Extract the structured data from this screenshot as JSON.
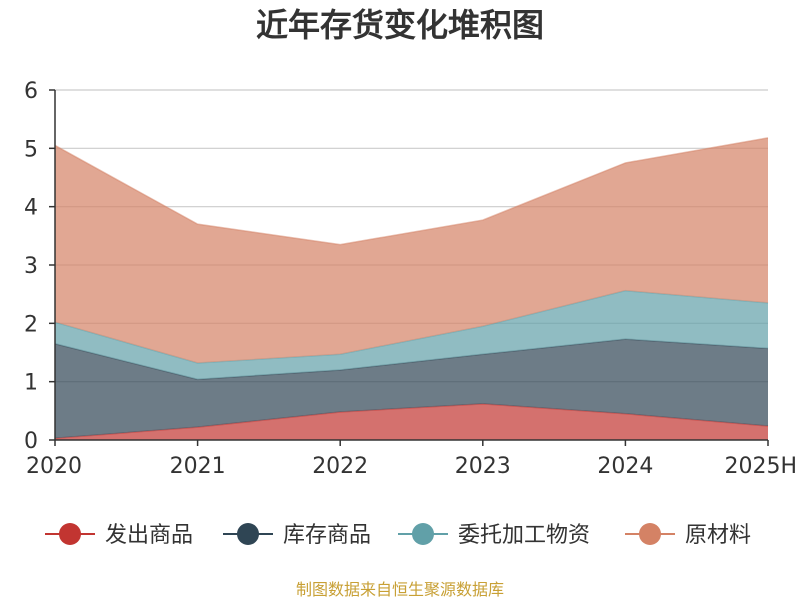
{
  "chart_data": {
    "type": "area",
    "stacked": true,
    "title": "近年存货变化堆积图",
    "categories": [
      "2020",
      "2021",
      "2022",
      "2023",
      "2024",
      "2025H"
    ],
    "ylim": [
      0,
      6
    ],
    "yticks": [
      "0",
      "1",
      "2",
      "3",
      "4",
      "5",
      "6"
    ],
    "grid": true,
    "legend_position": "bottom",
    "series": [
      {
        "name": "发出商品",
        "color": "#c23531",
        "values": [
          0.03,
          0.22,
          0.48,
          0.62,
          0.45,
          0.24
        ]
      },
      {
        "name": "库存商品",
        "color": "#2f4554",
        "values": [
          1.62,
          0.82,
          0.72,
          0.85,
          1.28,
          1.33
        ]
      },
      {
        "name": "委托加工物资",
        "color": "#61a0a8",
        "values": [
          0.37,
          0.28,
          0.27,
          0.48,
          0.83,
          0.78
        ]
      },
      {
        "name": "原材料",
        "color": "#d48265",
        "values": [
          3.03,
          2.38,
          1.88,
          1.82,
          2.19,
          2.83
        ]
      }
    ]
  },
  "footer": {
    "source": "制图数据来自恒生聚源数据库"
  }
}
